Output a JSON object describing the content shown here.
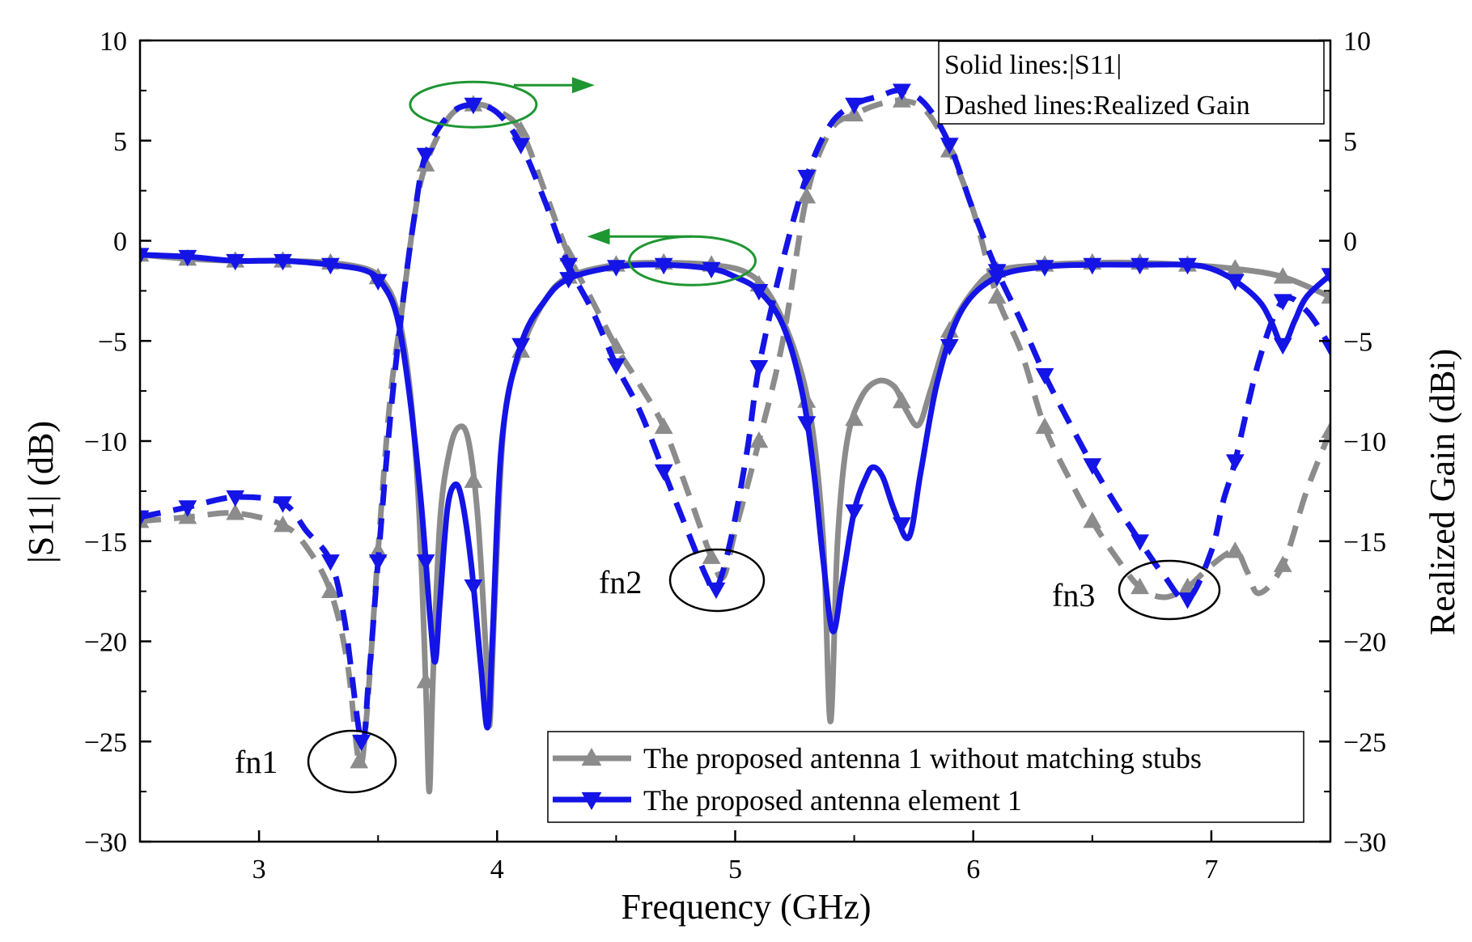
{
  "chart_data": {
    "type": "line",
    "xlabel": "Frequency (GHz)",
    "ylabel_left": "|S11| (dB)",
    "ylabel_right": "Realized Gain (dBi)",
    "xlim": [
      2.5,
      7.5
    ],
    "ylim_left": [
      -30,
      10
    ],
    "ylim_right": [
      -30,
      10
    ],
    "x_ticks": [
      3,
      4,
      5,
      6,
      7
    ],
    "x_tick_labels": [
      "3",
      "4",
      "5",
      "6",
      "7"
    ],
    "y_ticks": [
      10,
      5,
      0,
      -5,
      -10,
      -15,
      -20,
      -25,
      -30
    ],
    "y_tick_labels": [
      "10",
      "5",
      "0",
      "−5",
      "−10",
      "−15",
      "−20",
      "−25",
      "−30"
    ],
    "series": [
      {
        "name": "The proposed antenna 1 without matching stubs",
        "color": "#8c8c8c",
        "marker": "triangle-up",
        "s11": [
          [
            2.5,
            -0.7
          ],
          [
            2.7,
            -0.9
          ],
          [
            2.9,
            -1.0
          ],
          [
            3.1,
            -1.0
          ],
          [
            3.3,
            -1.1
          ],
          [
            3.45,
            -1.4
          ],
          [
            3.52,
            -2.0
          ],
          [
            3.58,
            -3.5
          ],
          [
            3.63,
            -7
          ],
          [
            3.67,
            -13
          ],
          [
            3.7,
            -22
          ],
          [
            3.715,
            -27.5
          ],
          [
            3.73,
            -22
          ],
          [
            3.76,
            -14
          ],
          [
            3.8,
            -10.5
          ],
          [
            3.84,
            -9.3
          ],
          [
            3.88,
            -10
          ],
          [
            3.92,
            -14
          ],
          [
            3.96,
            -22
          ],
          [
            3.97,
            -24
          ],
          [
            3.99,
            -18
          ],
          [
            4.03,
            -9
          ],
          [
            4.1,
            -5.5
          ],
          [
            4.2,
            -3
          ],
          [
            4.3,
            -1.8
          ],
          [
            4.5,
            -1.2
          ],
          [
            4.7,
            -1.1
          ],
          [
            4.9,
            -1.2
          ],
          [
            5.05,
            -1.6
          ],
          [
            5.15,
            -2.8
          ],
          [
            5.25,
            -5.5
          ],
          [
            5.32,
            -9
          ],
          [
            5.37,
            -15
          ],
          [
            5.4,
            -24
          ],
          [
            5.43,
            -15
          ],
          [
            5.47,
            -10
          ],
          [
            5.53,
            -7.8
          ],
          [
            5.6,
            -7
          ],
          [
            5.67,
            -7.3
          ],
          [
            5.72,
            -8.5
          ],
          [
            5.77,
            -9.2
          ],
          [
            5.82,
            -7.5
          ],
          [
            5.9,
            -4.5
          ],
          [
            6.0,
            -2.5
          ],
          [
            6.1,
            -1.5
          ],
          [
            6.3,
            -1.2
          ],
          [
            6.5,
            -1.1
          ],
          [
            6.7,
            -1.1
          ],
          [
            6.9,
            -1.2
          ],
          [
            7.1,
            -1.4
          ],
          [
            7.3,
            -1.8
          ],
          [
            7.5,
            -2.8
          ]
        ],
        "gain": [
          [
            2.5,
            -14
          ],
          [
            2.7,
            -13.8
          ],
          [
            2.9,
            -13.6
          ],
          [
            3.1,
            -14.2
          ],
          [
            3.2,
            -15.3
          ],
          [
            3.3,
            -17.5
          ],
          [
            3.37,
            -21
          ],
          [
            3.42,
            -26
          ],
          [
            3.45,
            -24
          ],
          [
            3.5,
            -15.5
          ],
          [
            3.55,
            -8
          ],
          [
            3.6,
            -3.5
          ],
          [
            3.65,
            1
          ],
          [
            3.7,
            3.8
          ],
          [
            3.8,
            6.2
          ],
          [
            3.9,
            6.8
          ],
          [
            4.0,
            6.5
          ],
          [
            4.1,
            5.5
          ],
          [
            4.2,
            2.5
          ],
          [
            4.3,
            -0.7
          ],
          [
            4.4,
            -3
          ],
          [
            4.5,
            -5.3
          ],
          [
            4.6,
            -7.2
          ],
          [
            4.7,
            -9.3
          ],
          [
            4.8,
            -12.5
          ],
          [
            4.9,
            -15.8
          ],
          [
            4.95,
            -16.8
          ],
          [
            5.0,
            -14.5
          ],
          [
            5.1,
            -10
          ],
          [
            5.2,
            -5
          ],
          [
            5.3,
            2.2
          ],
          [
            5.4,
            5.5
          ],
          [
            5.5,
            6.3
          ],
          [
            5.6,
            6.8
          ],
          [
            5.7,
            7.0
          ],
          [
            5.8,
            6.5
          ],
          [
            5.9,
            4.5
          ],
          [
            6.0,
            1.5
          ],
          [
            6.1,
            -2.8
          ],
          [
            6.2,
            -5.5
          ],
          [
            6.3,
            -9.3
          ],
          [
            6.4,
            -11.8
          ],
          [
            6.5,
            -14
          ],
          [
            6.6,
            -15.8
          ],
          [
            6.7,
            -17.3
          ],
          [
            6.8,
            -17.8
          ],
          [
            6.9,
            -17.3
          ],
          [
            7.0,
            -16.2
          ],
          [
            7.1,
            -15.5
          ],
          [
            7.15,
            -16.5
          ],
          [
            7.2,
            -17.6
          ],
          [
            7.3,
            -16.2
          ],
          [
            7.4,
            -12.5
          ],
          [
            7.5,
            -9.5
          ]
        ],
        "s11_markers": [
          2.5,
          2.7,
          2.9,
          3.1,
          3.3,
          3.5,
          3.7,
          3.9,
          4.1,
          4.3,
          4.5,
          4.7,
          4.9,
          5.1,
          5.3,
          5.5,
          5.7,
          5.9,
          6.1,
          6.3,
          6.5,
          6.7,
          6.9,
          7.1,
          7.3,
          7.5
        ],
        "gain_markers": [
          2.5,
          2.7,
          2.9,
          3.1,
          3.3,
          3.42,
          3.5,
          3.7,
          3.9,
          4.1,
          4.3,
          4.5,
          4.7,
          4.9,
          5.1,
          5.3,
          5.5,
          5.7,
          5.9,
          6.1,
          6.3,
          6.5,
          6.7,
          6.9,
          7.1,
          7.3,
          7.5
        ]
      },
      {
        "name": "The proposed antenna element 1",
        "color": "#1414e6",
        "marker": "triangle-down",
        "s11": [
          [
            2.5,
            -0.7
          ],
          [
            2.7,
            -0.8
          ],
          [
            2.9,
            -1.0
          ],
          [
            3.1,
            -1.0
          ],
          [
            3.3,
            -1.2
          ],
          [
            3.45,
            -1.5
          ],
          [
            3.52,
            -2.2
          ],
          [
            3.58,
            -3.8
          ],
          [
            3.63,
            -7.5
          ],
          [
            3.68,
            -13
          ],
          [
            3.72,
            -19
          ],
          [
            3.74,
            -21
          ],
          [
            3.76,
            -18
          ],
          [
            3.79,
            -13.5
          ],
          [
            3.82,
            -12.2
          ],
          [
            3.85,
            -12.8
          ],
          [
            3.89,
            -16
          ],
          [
            3.93,
            -21
          ],
          [
            3.96,
            -24.3
          ],
          [
            3.98,
            -20
          ],
          [
            4.02,
            -10
          ],
          [
            4.1,
            -5.2
          ],
          [
            4.2,
            -3
          ],
          [
            4.3,
            -1.9
          ],
          [
            4.5,
            -1.3
          ],
          [
            4.7,
            -1.2
          ],
          [
            4.9,
            -1.4
          ],
          [
            5.0,
            -1.8
          ],
          [
            5.1,
            -2.5
          ],
          [
            5.2,
            -4.2
          ],
          [
            5.28,
            -7.5
          ],
          [
            5.33,
            -11.5
          ],
          [
            5.37,
            -16
          ],
          [
            5.41,
            -19.5
          ],
          [
            5.45,
            -17
          ],
          [
            5.5,
            -13.5
          ],
          [
            5.55,
            -11.8
          ],
          [
            5.58,
            -11.3
          ],
          [
            5.62,
            -11.8
          ],
          [
            5.67,
            -13.5
          ],
          [
            5.73,
            -14.8
          ],
          [
            5.78,
            -11.5
          ],
          [
            5.85,
            -7
          ],
          [
            5.95,
            -3.5
          ],
          [
            6.1,
            -1.8
          ],
          [
            6.3,
            -1.3
          ],
          [
            6.5,
            -1.2
          ],
          [
            6.7,
            -1.2
          ],
          [
            6.9,
            -1.2
          ],
          [
            7.0,
            -1.4
          ],
          [
            7.1,
            -2.0
          ],
          [
            7.2,
            -3.0
          ],
          [
            7.25,
            -4
          ],
          [
            7.3,
            -5.2
          ],
          [
            7.35,
            -4
          ],
          [
            7.4,
            -2.8
          ],
          [
            7.5,
            -1.7
          ]
        ],
        "gain": [
          [
            2.5,
            -13.8
          ],
          [
            2.7,
            -13.3
          ],
          [
            2.9,
            -12.8
          ],
          [
            3.1,
            -13.1
          ],
          [
            3.2,
            -14.5
          ],
          [
            3.3,
            -16
          ],
          [
            3.36,
            -19
          ],
          [
            3.43,
            -25
          ],
          [
            3.46,
            -22
          ],
          [
            3.5,
            -16
          ],
          [
            3.55,
            -9
          ],
          [
            3.6,
            -3.5
          ],
          [
            3.65,
            1
          ],
          [
            3.7,
            4.3
          ],
          [
            3.8,
            6.3
          ],
          [
            3.9,
            6.8
          ],
          [
            4.0,
            6.4
          ],
          [
            4.1,
            4.8
          ],
          [
            4.2,
            2
          ],
          [
            4.3,
            -1.2
          ],
          [
            4.4,
            -3.5
          ],
          [
            4.5,
            -6.2
          ],
          [
            4.6,
            -8.5
          ],
          [
            4.7,
            -11.5
          ],
          [
            4.8,
            -14.5
          ],
          [
            4.88,
            -16.8
          ],
          [
            4.92,
            -17.4
          ],
          [
            4.98,
            -15
          ],
          [
            5.05,
            -10.5
          ],
          [
            5.1,
            -6.3
          ],
          [
            5.2,
            -1
          ],
          [
            5.3,
            3.2
          ],
          [
            5.4,
            5.8
          ],
          [
            5.5,
            6.8
          ],
          [
            5.6,
            7.2
          ],
          [
            5.7,
            7.5
          ],
          [
            5.8,
            6.8
          ],
          [
            5.9,
            4.8
          ],
          [
            6.0,
            1.5
          ],
          [
            6.1,
            -1.5
          ],
          [
            6.2,
            -4
          ],
          [
            6.3,
            -6.7
          ],
          [
            6.4,
            -9
          ],
          [
            6.5,
            -11.2
          ],
          [
            6.6,
            -13.2
          ],
          [
            6.7,
            -15
          ],
          [
            6.8,
            -16.7
          ],
          [
            6.9,
            -17.9
          ],
          [
            7.0,
            -15.5
          ],
          [
            7.05,
            -13
          ],
          [
            7.1,
            -11
          ],
          [
            7.2,
            -6
          ],
          [
            7.3,
            -3.0
          ],
          [
            7.4,
            -3.5
          ],
          [
            7.5,
            -5.3
          ]
        ],
        "s11_markers": [
          2.5,
          2.7,
          2.9,
          3.1,
          3.3,
          3.5,
          3.7,
          3.9,
          4.1,
          4.3,
          4.5,
          4.7,
          4.9,
          5.1,
          5.3,
          5.5,
          5.7,
          5.9,
          6.1,
          6.3,
          6.5,
          6.7,
          6.9,
          7.1,
          7.3,
          7.5
        ],
        "gain_markers": [
          2.5,
          2.7,
          2.9,
          3.1,
          3.3,
          3.43,
          3.5,
          3.7,
          3.9,
          4.1,
          4.3,
          4.5,
          4.7,
          4.92,
          5.1,
          5.3,
          5.5,
          5.7,
          5.9,
          6.1,
          6.3,
          6.5,
          6.7,
          6.9,
          7.1,
          7.3,
          7.5
        ]
      }
    ],
    "legend": [
      "The proposed antenna 1 without matching stubs",
      "The proposed antenna element 1"
    ],
    "legend_position": "bottom-right",
    "note_lines": [
      "Solid lines:|S11|",
      "Dashed lines:Realized Gain"
    ],
    "annotations": [
      {
        "label": "fn1",
        "x": 3.4,
        "y": -26
      },
      {
        "label": "fn2",
        "x": 4.95,
        "y": -17
      },
      {
        "label": "fn3",
        "x": 6.88,
        "y": -17.5
      }
    ],
    "arrows": [
      {
        "direction": "right",
        "circle_center": [
          3.9,
          6.8
        ],
        "axis": "right",
        "color": "#1e9632"
      },
      {
        "direction": "left",
        "circle_center": [
          4.82,
          -1.0
        ],
        "axis": "left",
        "color": "#1e9632"
      }
    ]
  }
}
